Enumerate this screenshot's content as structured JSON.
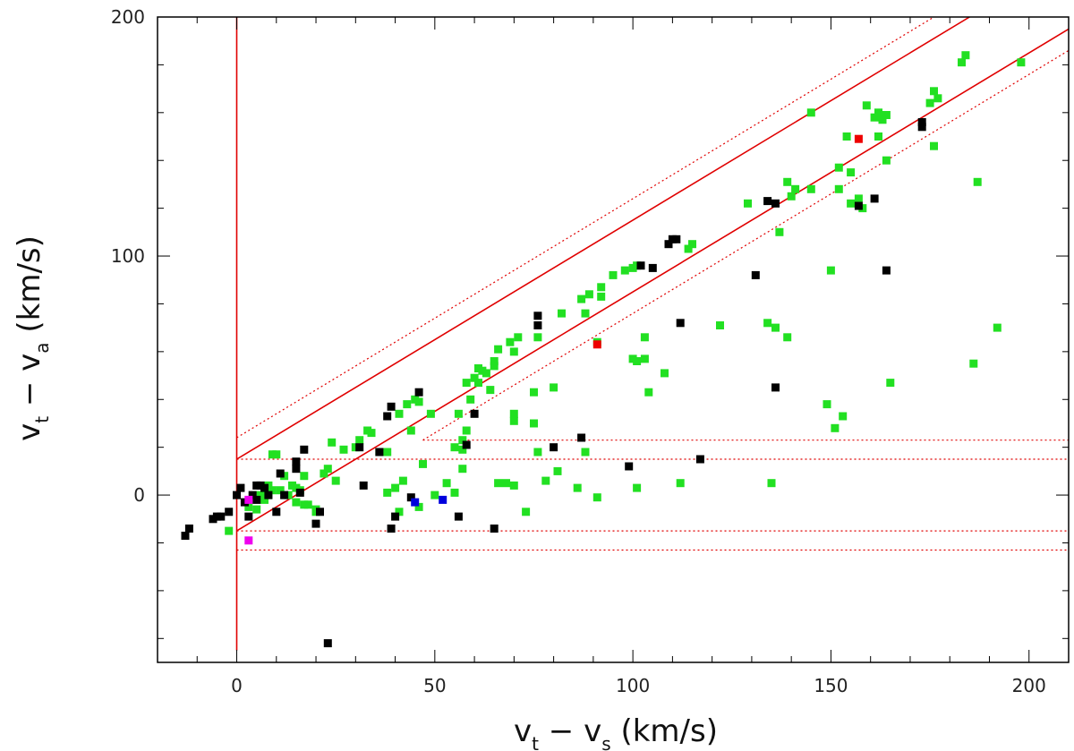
{
  "chart_data": {
    "type": "scatter",
    "title": "",
    "xlabel_main": "v",
    "xlabel_sub1": "t",
    "xlabel_mid": " − v",
    "xlabel_sub2": "s",
    "xlabel_unit": " (km/s)",
    "ylabel_main": "v",
    "ylabel_sub1": "t",
    "ylabel_mid": " − v",
    "ylabel_sub2": "a",
    "ylabel_unit": " (km/s)",
    "xlim": [
      -20,
      210
    ],
    "ylim": [
      -70,
      200
    ],
    "x_ticks": [
      0,
      50,
      100,
      150,
      200
    ],
    "y_ticks": [
      0,
      100,
      200
    ],
    "x_minor_step": 10,
    "y_minor_step": 20,
    "grid": false,
    "colors": {
      "green": "#22e022",
      "black": "#000000",
      "red": "#ee0000",
      "blue": "#0000dd",
      "magenta": "#ee00ee",
      "guide": "#e00000"
    },
    "guide_lines": [
      {
        "style": "solid",
        "points": [
          [
            0,
            200
          ],
          [
            0,
            -65
          ]
        ]
      },
      {
        "style": "solid",
        "points": [
          [
            0,
            15
          ],
          [
            185,
            200
          ]
        ]
      },
      {
        "style": "solid",
        "points": [
          [
            0,
            -15
          ],
          [
            210,
            195
          ]
        ]
      },
      {
        "style": "dotted",
        "points": [
          [
            0,
            24
          ],
          [
            176,
            200
          ]
        ]
      },
      {
        "style": "dotted",
        "points": [
          [
            47,
            23
          ],
          [
            210,
            186
          ]
        ]
      },
      {
        "style": "dotted",
        "points": [
          [
            0,
            15
          ],
          [
            210,
            15
          ]
        ]
      },
      {
        "style": "dotted",
        "points": [
          [
            47,
            23
          ],
          [
            210,
            23
          ]
        ]
      },
      {
        "style": "dotted",
        "points": [
          [
            0,
            -15
          ],
          [
            210,
            -15
          ]
        ]
      },
      {
        "style": "dotted",
        "points": [
          [
            0,
            -23
          ],
          [
            210,
            -23
          ]
        ]
      }
    ],
    "series": [
      {
        "color": "green",
        "points": [
          [
            -2,
            -15
          ],
          [
            3,
            -5
          ],
          [
            5,
            -6
          ],
          [
            6,
            0
          ],
          [
            7,
            -2
          ],
          [
            7,
            3
          ],
          [
            8,
            0
          ],
          [
            8,
            4
          ],
          [
            9,
            2
          ],
          [
            10,
            17
          ],
          [
            9,
            17
          ],
          [
            11,
            2
          ],
          [
            12,
            8
          ],
          [
            13,
            0
          ],
          [
            14,
            4
          ],
          [
            15,
            3
          ],
          [
            15,
            -3
          ],
          [
            16,
            2
          ],
          [
            17,
            -4
          ],
          [
            17,
            8
          ],
          [
            18,
            -4
          ],
          [
            20,
            -6
          ],
          [
            20,
            -7
          ],
          [
            22,
            9
          ],
          [
            23,
            11
          ],
          [
            24,
            22
          ],
          [
            25,
            6
          ],
          [
            27,
            19
          ],
          [
            30,
            20
          ],
          [
            31,
            23
          ],
          [
            33,
            27
          ],
          [
            34,
            26
          ],
          [
            36,
            18
          ],
          [
            38,
            18
          ],
          [
            38,
            1
          ],
          [
            40,
            3
          ],
          [
            41,
            -7
          ],
          [
            41,
            34
          ],
          [
            42,
            6
          ],
          [
            43,
            38
          ],
          [
            44,
            27
          ],
          [
            45,
            40
          ],
          [
            46,
            39
          ],
          [
            46,
            -5
          ],
          [
            47,
            13
          ],
          [
            49,
            34
          ],
          [
            50,
            0
          ],
          [
            53,
            5
          ],
          [
            55,
            1
          ],
          [
            55,
            20
          ],
          [
            56,
            34
          ],
          [
            57,
            23
          ],
          [
            57,
            11
          ],
          [
            57,
            19
          ],
          [
            58,
            47
          ],
          [
            58,
            27
          ],
          [
            59,
            40
          ],
          [
            60,
            49
          ],
          [
            61,
            53
          ],
          [
            61,
            47
          ],
          [
            62,
            52
          ],
          [
            63,
            51
          ],
          [
            64,
            44
          ],
          [
            65,
            54
          ],
          [
            65,
            56
          ],
          [
            66,
            61
          ],
          [
            66,
            5
          ],
          [
            68,
            5
          ],
          [
            69,
            64
          ],
          [
            70,
            60
          ],
          [
            70,
            34
          ],
          [
            70,
            31
          ],
          [
            70,
            4
          ],
          [
            71,
            66
          ],
          [
            73,
            -7
          ],
          [
            75,
            43
          ],
          [
            75,
            30
          ],
          [
            76,
            18
          ],
          [
            76,
            66
          ],
          [
            78,
            6
          ],
          [
            80,
            45
          ],
          [
            81,
            10
          ],
          [
            82,
            76
          ],
          [
            86,
            3
          ],
          [
            87,
            82
          ],
          [
            88,
            76
          ],
          [
            88,
            18
          ],
          [
            89,
            84
          ],
          [
            91,
            64
          ],
          [
            91,
            -1
          ],
          [
            92,
            83
          ],
          [
            92,
            87
          ],
          [
            95,
            92
          ],
          [
            98,
            94
          ],
          [
            100,
            95
          ],
          [
            100,
            57
          ],
          [
            101,
            56
          ],
          [
            101,
            3
          ],
          [
            101,
            96
          ],
          [
            103,
            57
          ],
          [
            103,
            66
          ],
          [
            104,
            43
          ],
          [
            108,
            51
          ],
          [
            112,
            5
          ],
          [
            114,
            103
          ],
          [
            115,
            105
          ],
          [
            122,
            71
          ],
          [
            129,
            122
          ],
          [
            134,
            72
          ],
          [
            135,
            5
          ],
          [
            136,
            70
          ],
          [
            137,
            110
          ],
          [
            139,
            131
          ],
          [
            139,
            66
          ],
          [
            140,
            125
          ],
          [
            141,
            128
          ],
          [
            145,
            160
          ],
          [
            145,
            128
          ],
          [
            149,
            38
          ],
          [
            150,
            94
          ],
          [
            151,
            28
          ],
          [
            152,
            128
          ],
          [
            152,
            137
          ],
          [
            153,
            33
          ],
          [
            154,
            150
          ],
          [
            155,
            135
          ],
          [
            155,
            122
          ],
          [
            157,
            124
          ],
          [
            158,
            120
          ],
          [
            159,
            163
          ],
          [
            161,
            158
          ],
          [
            162,
            160
          ],
          [
            162,
            150
          ],
          [
            163,
            157
          ],
          [
            164,
            140
          ],
          [
            164,
            159
          ],
          [
            165,
            47
          ],
          [
            175,
            164
          ],
          [
            176,
            146
          ],
          [
            176,
            169
          ],
          [
            177,
            166
          ],
          [
            183,
            181
          ],
          [
            184,
            184
          ],
          [
            186,
            55
          ],
          [
            187,
            131
          ],
          [
            192,
            70
          ],
          [
            198,
            181
          ]
        ]
      },
      {
        "color": "black",
        "points": [
          [
            -13,
            -17
          ],
          [
            -12,
            -14
          ],
          [
            -6,
            -10
          ],
          [
            -5,
            -9
          ],
          [
            -4,
            -9
          ],
          [
            -2,
            -7
          ],
          [
            0,
            0
          ],
          [
            1,
            3
          ],
          [
            2,
            -3
          ],
          [
            3,
            -9
          ],
          [
            4,
            0
          ],
          [
            5,
            -2
          ],
          [
            5,
            4
          ],
          [
            6,
            4
          ],
          [
            7,
            3
          ],
          [
            8,
            0
          ],
          [
            10,
            -7
          ],
          [
            11,
            9
          ],
          [
            12,
            0
          ],
          [
            15,
            11
          ],
          [
            15,
            14
          ],
          [
            16,
            1
          ],
          [
            17,
            19
          ],
          [
            20,
            -12
          ],
          [
            21,
            -7
          ],
          [
            23,
            -62
          ],
          [
            31,
            20
          ],
          [
            32,
            4
          ],
          [
            36,
            18
          ],
          [
            38,
            33
          ],
          [
            39,
            37
          ],
          [
            39,
            -14
          ],
          [
            40,
            -9
          ],
          [
            44,
            -1
          ],
          [
            46,
            43
          ],
          [
            56,
            -9
          ],
          [
            58,
            21
          ],
          [
            60,
            34
          ],
          [
            65,
            -14
          ],
          [
            76,
            71
          ],
          [
            76,
            75
          ],
          [
            80,
            20
          ],
          [
            87,
            24
          ],
          [
            99,
            12
          ],
          [
            102,
            96
          ],
          [
            105,
            95
          ],
          [
            109,
            105
          ],
          [
            110,
            107
          ],
          [
            111,
            107
          ],
          [
            112,
            72
          ],
          [
            117,
            15
          ],
          [
            131,
            92
          ],
          [
            134,
            123
          ],
          [
            136,
            45
          ],
          [
            136,
            122
          ],
          [
            157,
            121
          ],
          [
            161,
            124
          ],
          [
            164,
            94
          ],
          [
            173,
            156
          ],
          [
            173,
            154
          ]
        ]
      },
      {
        "color": "red",
        "points": [
          [
            91,
            63
          ],
          [
            157,
            149
          ]
        ]
      },
      {
        "color": "blue",
        "points": [
          [
            45,
            -3
          ],
          [
            52,
            -2
          ]
        ]
      },
      {
        "color": "magenta",
        "points": [
          [
            3,
            -2
          ],
          [
            3,
            -19
          ]
        ]
      }
    ]
  }
}
